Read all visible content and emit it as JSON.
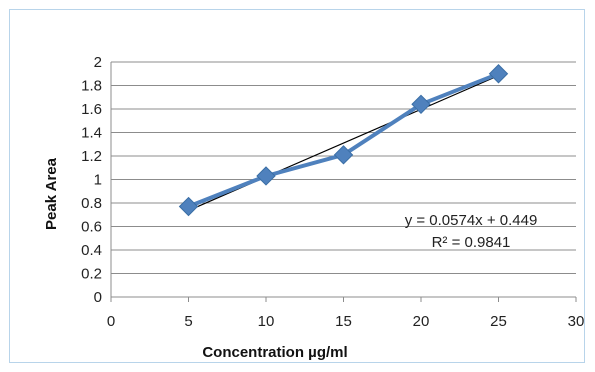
{
  "chart_data": {
    "type": "line",
    "title": "",
    "xlabel": "Concentration µg/ml",
    "ylabel": "Peak Area",
    "xlim": [
      0,
      30
    ],
    "ylim": [
      0,
      2
    ],
    "xticks": [
      0,
      5,
      10,
      15,
      20,
      25,
      30
    ],
    "yticks": [
      0,
      0.2,
      0.4,
      0.6,
      0.8,
      1,
      1.2,
      1.4,
      1.6,
      1.8,
      2
    ],
    "grid": true,
    "legend": "none",
    "series": [
      {
        "color": "#4f81bd",
        "marker": "diamond",
        "points": [
          {
            "x": 5,
            "y": 0.77
          },
          {
            "x": 10,
            "y": 1.03
          },
          {
            "x": 15,
            "y": 1.21
          },
          {
            "x": 20,
            "y": 1.64
          },
          {
            "x": 25,
            "y": 1.9
          }
        ]
      }
    ],
    "trendline": {
      "type": "linear",
      "slope": 0.0574,
      "intercept": 0.449,
      "color": "#000000",
      "equation_text": "y = 0.0574x + 0.449",
      "r2_text": "R² = 0.9841"
    }
  }
}
